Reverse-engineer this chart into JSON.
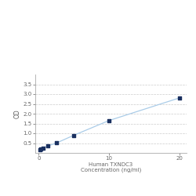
{
  "x": [
    0.156,
    0.313,
    0.625,
    1.25,
    2.5,
    5,
    10,
    20
  ],
  "y": [
    0.175,
    0.202,
    0.257,
    0.35,
    0.502,
    0.9,
    1.65,
    2.8
  ],
  "xlabel_line1": "Human TXNDC3",
  "xlabel_line2": "Concentration (ng/ml)",
  "ylabel": "OD",
  "xlim": [
    -0.5,
    21
  ],
  "ylim": [
    0,
    4.0
  ],
  "yticks": [
    0.5,
    1.0,
    1.5,
    2.0,
    2.5,
    3.0,
    3.5
  ],
  "xticks": [
    0,
    10,
    20
  ],
  "line_color": "#aacce8",
  "marker_color": "#1a3060",
  "background_color": "#ffffff",
  "grid_color": "#cccccc"
}
